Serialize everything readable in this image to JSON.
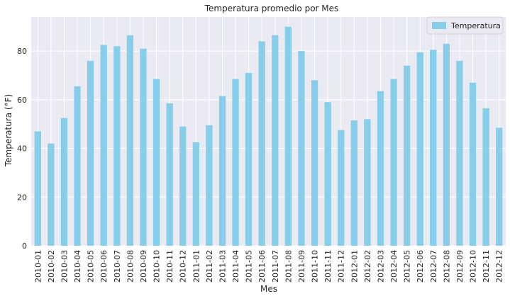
{
  "chart_data": {
    "type": "bar",
    "title": "Temperatura promedio por Mes",
    "xlabel": "Mes",
    "ylabel": "Temperatura (°F)",
    "ylim": [
      0,
      94
    ],
    "yticks": [
      0,
      20,
      40,
      60,
      80
    ],
    "grid": true,
    "legend_position": "top-right",
    "series": [
      {
        "name": "Temperatura",
        "color": "#87ceeb",
        "values": [
          47,
          42,
          52.5,
          65.5,
          76,
          82.5,
          82,
          86.5,
          81,
          68.5,
          58.5,
          49,
          42.5,
          49.5,
          61.5,
          68.5,
          71,
          84,
          86.5,
          90,
          80,
          68,
          59,
          47.5,
          51.5,
          52,
          63.5,
          68.5,
          74,
          79.5,
          80.5,
          83,
          76,
          67,
          56.5,
          48.5
        ]
      }
    ],
    "categories": [
      "2010-01",
      "2010-02",
      "2010-03",
      "2010-04",
      "2010-05",
      "2010-06",
      "2010-07",
      "2010-08",
      "2010-09",
      "2010-10",
      "2010-11",
      "2010-12",
      "2011-01",
      "2011-02",
      "2011-03",
      "2011-04",
      "2011-05",
      "2011-06",
      "2011-07",
      "2011-08",
      "2011-09",
      "2011-10",
      "2011-11",
      "2011-12",
      "2012-01",
      "2012-02",
      "2012-03",
      "2012-04",
      "2012-05",
      "2012-06",
      "2012-07",
      "2012-08",
      "2012-09",
      "2012-10",
      "2012-11",
      "2012-12"
    ]
  },
  "colors": {
    "plot_bg": "#eaeaf2",
    "grid": "#ffffff",
    "bar": "#87ceeb"
  }
}
